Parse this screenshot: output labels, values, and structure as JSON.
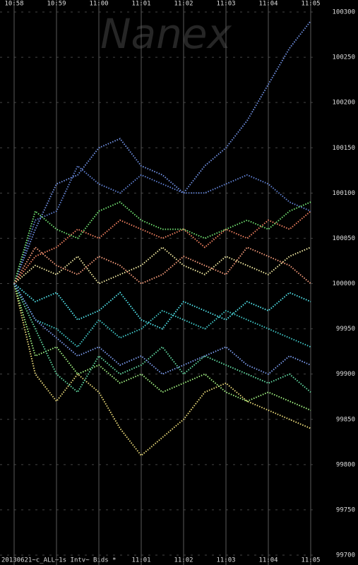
{
  "chart_data": {
    "type": "line",
    "watermark": "Nanex",
    "footer": "20130621~c_ALL~1s Intv~ Bids *",
    "x": [
      658,
      658.5,
      659,
      659.5,
      660,
      660.5,
      661,
      661.5,
      662,
      662.5,
      663,
      663.5,
      664,
      664.5,
      665
    ],
    "xlim": [
      658,
      665
    ],
    "xticks": [
      {
        "value": 658,
        "label": "10:58"
      },
      {
        "value": 659,
        "label": "10:59"
      },
      {
        "value": 660,
        "label": "11:00"
      },
      {
        "value": 661,
        "label": "11:01"
      },
      {
        "value": 662,
        "label": "11:02"
      },
      {
        "value": 663,
        "label": "11:03"
      },
      {
        "value": 664,
        "label": "11:04"
      },
      {
        "value": 665,
        "label": "11:05"
      }
    ],
    "ylim": [
      99700,
      100300
    ],
    "yticks": [
      99700,
      99750,
      99800,
      99850,
      99900,
      99950,
      100000,
      100050,
      100100,
      100150,
      100200,
      100250,
      100300
    ],
    "grid": true,
    "series": [
      {
        "color": "#6f8fe0",
        "values": [
          100000,
          100060,
          100110,
          100120,
          100150,
          100160,
          100130,
          100120,
          100100,
          100130,
          100150,
          100180,
          100220,
          100260,
          100290
        ]
      },
      {
        "color": "#5f7fd0",
        "values": [
          100000,
          100070,
          100080,
          100130,
          100110,
          100100,
          100120,
          100110,
          100100,
          100100,
          100110,
          100120,
          100110,
          100090,
          100080
        ]
      },
      {
        "color": "#e8d878",
        "values": [
          100000,
          99900,
          99870,
          99900,
          99880,
          99840,
          99810,
          99830,
          99850,
          99880,
          99890,
          99870,
          99860,
          99850,
          99840
        ]
      },
      {
        "color": "#f08060",
        "values": [
          100000,
          100030,
          100040,
          100060,
          100050,
          100070,
          100060,
          100050,
          100060,
          100040,
          100060,
          100050,
          100070,
          100060,
          100080
        ]
      },
      {
        "color": "#70e070",
        "values": [
          100000,
          100080,
          100060,
          100050,
          100080,
          100090,
          100070,
          100060,
          100060,
          100050,
          100060,
          100070,
          100060,
          100080,
          100090
        ]
      },
      {
        "color": "#40c8c8",
        "values": [
          100000,
          99960,
          99950,
          99930,
          99960,
          99940,
          99950,
          99970,
          99960,
          99950,
          99970,
          99960,
          99950,
          99940,
          99930
        ]
      },
      {
        "color": "#a0f080",
        "values": [
          100000,
          99920,
          99930,
          99900,
          99910,
          99890,
          99900,
          99880,
          99890,
          99900,
          99880,
          99870,
          99880,
          99870,
          99860
        ]
      },
      {
        "color": "#50e0e8",
        "values": [
          100000,
          99980,
          99990,
          99960,
          99970,
          99990,
          99960,
          99950,
          99980,
          99970,
          99960,
          99980,
          99970,
          99990,
          99980
        ]
      },
      {
        "color": "#f0e8a0",
        "values": [
          100000,
          100020,
          100010,
          100030,
          100000,
          100010,
          100020,
          100040,
          100020,
          100010,
          100030,
          100020,
          100010,
          100030,
          100040
        ]
      },
      {
        "color": "#60d8a0",
        "values": [
          100000,
          99950,
          99900,
          99880,
          99920,
          99900,
          99910,
          99930,
          99900,
          99920,
          99910,
          99900,
          99890,
          99900,
          99880
        ]
      },
      {
        "color": "#f09878",
        "values": [
          100000,
          100040,
          100020,
          100010,
          100030,
          100020,
          100000,
          100010,
          100030,
          100020,
          100010,
          100040,
          100030,
          100020,
          100000
        ]
      },
      {
        "color": "#7898e8",
        "values": [
          100000,
          99960,
          99940,
          99920,
          99930,
          99910,
          99920,
          99900,
          99910,
          99920,
          99930,
          99910,
          99900,
          99920,
          99910
        ]
      }
    ]
  }
}
